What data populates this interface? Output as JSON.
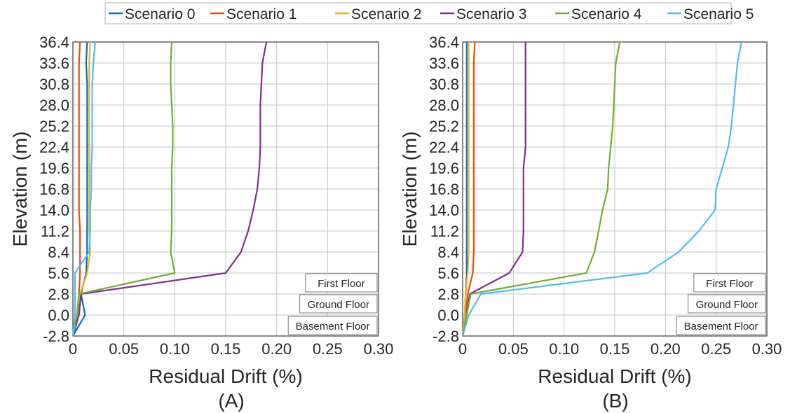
{
  "legend": [
    {
      "name": "Scenario 0",
      "color": "#0072BD"
    },
    {
      "name": "Scenario 1",
      "color": "#D95319"
    },
    {
      "name": "Scenario 2",
      "color": "#EDB120"
    },
    {
      "name": "Scenario 3",
      "color": "#7E2F8E"
    },
    {
      "name": "Scenario 4",
      "color": "#77AC30"
    },
    {
      "name": "Scenario 5",
      "color": "#4DBEEE"
    }
  ],
  "chart_data": [
    {
      "type": "line",
      "panel_label": "(A)",
      "xlabel": "Residual Drift (%)",
      "ylabel": "Elevation (m)",
      "xlim": [
        0,
        0.3
      ],
      "ylim": [
        -2.8,
        36.4
      ],
      "xticks": [
        "0",
        "0.05",
        "0.10",
        "0.15",
        "0.20",
        "0.25",
        "0.30"
      ],
      "yticks": [
        "-2.8",
        "0.0",
        "2.8",
        "5.6",
        "8.4",
        "11.2",
        "14.0",
        "16.8",
        "19.6",
        "22.4",
        "25.2",
        "28.0",
        "30.8",
        "33.6",
        "36.4"
      ],
      "grid": true,
      "annotations": [
        "First Floor",
        "Ground Floor",
        "Basement Floor"
      ],
      "series": [
        {
          "name": "Scenario 0",
          "color": "#0072BD",
          "points": [
            [
              0,
              -2.8
            ],
            [
              0.012,
              0
            ],
            [
              0.008,
              2.8
            ],
            [
              0.013,
              5.6
            ],
            [
              0.014,
              8.4
            ],
            [
              0.014,
              11.2
            ],
            [
              0.014,
              14
            ],
            [
              0.014,
              16.8
            ],
            [
              0.014,
              19.6
            ],
            [
              0.014,
              22.4
            ],
            [
              0.014,
              25.2
            ],
            [
              0.014,
              28
            ],
            [
              0.014,
              30.8
            ],
            [
              0.013,
              33.6
            ],
            [
              0.014,
              36.4
            ]
          ]
        },
        {
          "name": "Scenario 1",
          "color": "#D95319",
          "points": [
            [
              0,
              -2.8
            ],
            [
              0.004,
              0
            ],
            [
              0.006,
              2.8
            ],
            [
              0.007,
              5.6
            ],
            [
              0.007,
              8.4
            ],
            [
              0.007,
              11.2
            ],
            [
              0.006,
              14
            ],
            [
              0.006,
              16.8
            ],
            [
              0.006,
              19.6
            ],
            [
              0.006,
              22.4
            ],
            [
              0.006,
              25.2
            ],
            [
              0.006,
              28
            ],
            [
              0.006,
              30.8
            ],
            [
              0.006,
              33.6
            ],
            [
              0.007,
              36.4
            ]
          ]
        },
        {
          "name": "Scenario 2",
          "color": "#EDB120",
          "points": [
            [
              0,
              -2.8
            ],
            [
              0.005,
              0
            ],
            [
              0.007,
              2.8
            ],
            [
              0.014,
              5.6
            ],
            [
              0.017,
              8.4
            ],
            [
              0.016,
              11.2
            ],
            [
              0.016,
              14
            ],
            [
              0.016,
              16.8
            ],
            [
              0.016,
              19.6
            ],
            [
              0.016,
              22.4
            ],
            [
              0.016,
              25.2
            ],
            [
              0.016,
              28
            ],
            [
              0.016,
              30.8
            ],
            [
              0.016,
              33.6
            ],
            [
              0.017,
              36.4
            ]
          ]
        },
        {
          "name": "Scenario 3",
          "color": "#7E2F8E",
          "points": [
            [
              0,
              -2.8
            ],
            [
              0.006,
              0
            ],
            [
              0.008,
              2.8
            ],
            [
              0.15,
              5.6
            ],
            [
              0.165,
              8.4
            ],
            [
              0.172,
              11.2
            ],
            [
              0.177,
              14
            ],
            [
              0.181,
              16.8
            ],
            [
              0.183,
              19.6
            ],
            [
              0.184,
              22.4
            ],
            [
              0.184,
              25.2
            ],
            [
              0.184,
              28
            ],
            [
              0.185,
              30.8
            ],
            [
              0.186,
              33.6
            ],
            [
              0.19,
              36.4
            ]
          ]
        },
        {
          "name": "Scenario 4",
          "color": "#77AC30",
          "points": [
            [
              0,
              -2.8
            ],
            [
              0.004,
              0
            ],
            [
              0.006,
              2.8
            ],
            [
              0.1,
              5.6
            ],
            [
              0.096,
              8.4
            ],
            [
              0.097,
              11.2
            ],
            [
              0.097,
              14
            ],
            [
              0.097,
              16.8
            ],
            [
              0.097,
              19.6
            ],
            [
              0.098,
              22.4
            ],
            [
              0.098,
              25.2
            ],
            [
              0.097,
              28
            ],
            [
              0.096,
              30.8
            ],
            [
              0.096,
              33.6
            ],
            [
              0.097,
              36.4
            ]
          ]
        },
        {
          "name": "Scenario 5",
          "color": "#4DBEEE",
          "points": [
            [
              0,
              -2.8
            ],
            [
              0.002,
              0
            ],
            [
              0.002,
              2.8
            ],
            [
              0.002,
              5.6
            ],
            [
              0.016,
              8.4
            ],
            [
              0.017,
              11.2
            ],
            [
              0.017,
              14
            ],
            [
              0.018,
              16.8
            ],
            [
              0.018,
              19.6
            ],
            [
              0.019,
              22.4
            ],
            [
              0.019,
              25.2
            ],
            [
              0.019,
              28
            ],
            [
              0.019,
              30.8
            ],
            [
              0.02,
              33.6
            ],
            [
              0.022,
              36.4
            ]
          ]
        }
      ]
    },
    {
      "type": "line",
      "panel_label": "(B)",
      "xlabel": "Residual Drift (%)",
      "ylabel": "Elevation (m)",
      "xlim": [
        0,
        0.3
      ],
      "ylim": [
        -2.8,
        36.4
      ],
      "xticks": [
        "0",
        "0.05",
        "0.10",
        "0.15",
        "0.20",
        "0.25",
        "0.30"
      ],
      "yticks": [
        "-2.8",
        "0.0",
        "2.8",
        "5.6",
        "8.4",
        "11.2",
        "14.0",
        "16.8",
        "19.6",
        "22.4",
        "25.2",
        "28.0",
        "30.8",
        "33.6",
        "36.4"
      ],
      "grid": true,
      "annotations": [
        "First Floor",
        "Ground Floor",
        "Basement Floor"
      ],
      "series": [
        {
          "name": "Scenario 0",
          "color": "#0072BD",
          "points": [
            [
              0,
              -2.8
            ],
            [
              0.002,
              0
            ],
            [
              0.003,
              2.8
            ],
            [
              0.004,
              5.6
            ],
            [
              0.004,
              8.4
            ],
            [
              0.004,
              11.2
            ],
            [
              0.004,
              14
            ],
            [
              0.004,
              16.8
            ],
            [
              0.004,
              19.6
            ],
            [
              0.004,
              22.4
            ],
            [
              0.004,
              25.2
            ],
            [
              0.004,
              28
            ],
            [
              0.004,
              30.8
            ],
            [
              0.004,
              33.6
            ],
            [
              0.004,
              36.4
            ]
          ]
        },
        {
          "name": "Scenario 1",
          "color": "#D95319",
          "points": [
            [
              0,
              -2.8
            ],
            [
              0.003,
              0
            ],
            [
              0.005,
              2.8
            ],
            [
              0.01,
              5.6
            ],
            [
              0.011,
              8.4
            ],
            [
              0.011,
              11.2
            ],
            [
              0.011,
              14
            ],
            [
              0.011,
              16.8
            ],
            [
              0.011,
              19.6
            ],
            [
              0.011,
              22.4
            ],
            [
              0.011,
              25.2
            ],
            [
              0.011,
              28
            ],
            [
              0.011,
              30.8
            ],
            [
              0.011,
              33.6
            ],
            [
              0.012,
              36.4
            ]
          ]
        },
        {
          "name": "Scenario 2",
          "color": "#EDB120",
          "points": [
            [
              0,
              -2.8
            ],
            [
              0.002,
              0
            ],
            [
              0.003,
              2.8
            ],
            [
              0.005,
              5.6
            ],
            [
              0.006,
              8.4
            ],
            [
              0.006,
              11.2
            ],
            [
              0.006,
              14
            ],
            [
              0.006,
              16.8
            ],
            [
              0.006,
              19.6
            ],
            [
              0.006,
              22.4
            ],
            [
              0.006,
              25.2
            ],
            [
              0.006,
              28
            ],
            [
              0.006,
              30.8
            ],
            [
              0.006,
              33.6
            ],
            [
              0.006,
              36.4
            ]
          ]
        },
        {
          "name": "Scenario 3",
          "color": "#7E2F8E",
          "points": [
            [
              0,
              -2.8
            ],
            [
              0.004,
              0
            ],
            [
              0.007,
              2.8
            ],
            [
              0.046,
              5.6
            ],
            [
              0.059,
              8.4
            ],
            [
              0.06,
              11.2
            ],
            [
              0.06,
              14
            ],
            [
              0.06,
              16.8
            ],
            [
              0.06,
              19.6
            ],
            [
              0.062,
              22.4
            ],
            [
              0.062,
              25.2
            ],
            [
              0.062,
              28
            ],
            [
              0.062,
              30.8
            ],
            [
              0.062,
              33.6
            ],
            [
              0.062,
              36.4
            ]
          ]
        },
        {
          "name": "Scenario 4",
          "color": "#77AC30",
          "points": [
            [
              0,
              -2.8
            ],
            [
              0.004,
              0
            ],
            [
              0.008,
              2.8
            ],
            [
              0.122,
              5.6
            ],
            [
              0.13,
              8.4
            ],
            [
              0.134,
              11.2
            ],
            [
              0.138,
              14
            ],
            [
              0.143,
              16.8
            ],
            [
              0.144,
              19.6
            ],
            [
              0.146,
              22.4
            ],
            [
              0.148,
              25.2
            ],
            [
              0.149,
              28
            ],
            [
              0.15,
              30.8
            ],
            [
              0.151,
              33.6
            ],
            [
              0.155,
              36.4
            ]
          ]
        },
        {
          "name": "Scenario 5",
          "color": "#4DBEEE",
          "points": [
            [
              0,
              -2.8
            ],
            [
              0.006,
              0
            ],
            [
              0.018,
              2.8
            ],
            [
              0.182,
              5.6
            ],
            [
              0.213,
              8.4
            ],
            [
              0.233,
              11.2
            ],
            [
              0.249,
              14
            ],
            [
              0.25,
              16.8
            ],
            [
              0.256,
              19.6
            ],
            [
              0.262,
              22.4
            ],
            [
              0.265,
              25.2
            ],
            [
              0.267,
              28
            ],
            [
              0.269,
              30.8
            ],
            [
              0.271,
              33.6
            ],
            [
              0.275,
              36.4
            ]
          ]
        }
      ]
    }
  ]
}
